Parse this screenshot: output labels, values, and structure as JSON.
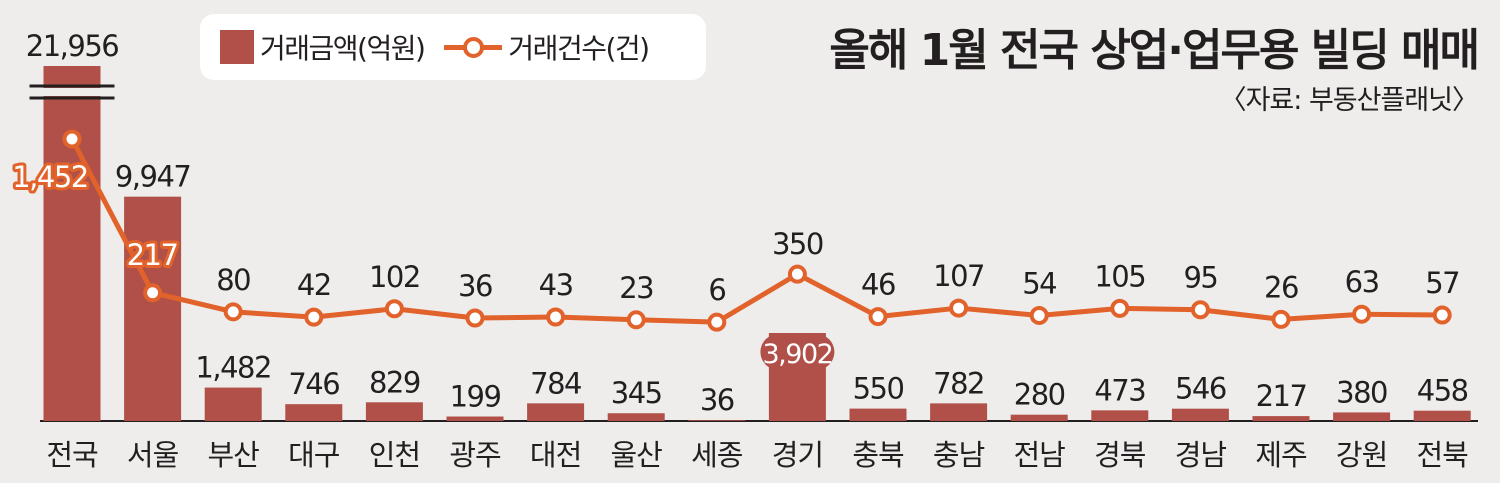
{
  "title": "올해 1월 전국 상업·업무용 빌딩 매매",
  "source": "〈자료: 부동산플래닛〉",
  "legend": {
    "bar_label": "거래금액(억원)",
    "line_label": "거래건수(건)"
  },
  "colors": {
    "bar": "#b05048",
    "line": "#e1622a",
    "background": "#eeedec",
    "axis": "#231f20"
  },
  "chart_data": {
    "type": "bar",
    "categories": [
      "전국",
      "서울",
      "부산",
      "대구",
      "인천",
      "광주",
      "대전",
      "울산",
      "세종",
      "경기",
      "충북",
      "충남",
      "전남",
      "경북",
      "경남",
      "제주",
      "강원",
      "전북"
    ],
    "series": [
      {
        "name": "거래금액(억원)",
        "type": "bar",
        "values": [
          21956,
          9947,
          1482,
          746,
          829,
          199,
          784,
          345,
          36,
          3902,
          550,
          782,
          280,
          473,
          546,
          217,
          380,
          458
        ],
        "labels": [
          "21,956",
          "9,947",
          "1,482",
          "746",
          "829",
          "199",
          "784",
          "345",
          "36",
          "3,902",
          "550",
          "782",
          "280",
          "473",
          "546",
          "217",
          "380",
          "458"
        ]
      },
      {
        "name": "거래건수(건)",
        "type": "line",
        "values": [
          1452,
          217,
          80,
          42,
          102,
          36,
          43,
          23,
          6,
          350,
          46,
          107,
          54,
          105,
          95,
          26,
          63,
          57
        ],
        "labels": [
          "1,452",
          "217",
          "80",
          "42",
          "102",
          "36",
          "43",
          "23",
          "6",
          "350",
          "46",
          "107",
          "54",
          "105",
          "95",
          "26",
          "63",
          "57"
        ]
      }
    ],
    "axis_break_on": "전국"
  }
}
